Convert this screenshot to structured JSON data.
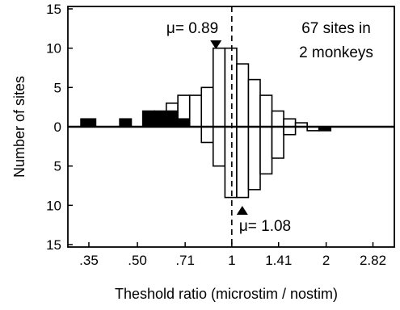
{
  "chart_data": {
    "type": "bar",
    "title": "",
    "xlabel": "Theshold ratio (microstim / nostim)",
    "ylabel": "Number of sites",
    "xscale": "log2",
    "xlim": [
      0.3,
      3.3
    ],
    "ylim_upper": [
      0,
      15
    ],
    "ylim_lower": [
      0,
      15
    ],
    "x_ticks": [
      {
        "value": 0.35,
        "label": ".35"
      },
      {
        "value": 0.5,
        "label": ".50"
      },
      {
        "value": 0.71,
        "label": ".71"
      },
      {
        "value": 1,
        "label": "1"
      },
      {
        "value": 1.41,
        "label": "1.41"
      },
      {
        "value": 2,
        "label": "2"
      },
      {
        "value": 2.82,
        "label": "2.82"
      }
    ],
    "y_ticks_upper": [
      {
        "value": 0,
        "label": "0"
      },
      {
        "value": 5,
        "label": "5"
      },
      {
        "value": 10,
        "label": "10"
      },
      {
        "value": 15,
        "label": "15"
      }
    ],
    "y_ticks_lower": [
      {
        "value": 5,
        "label": "5"
      },
      {
        "value": 10,
        "label": "10"
      },
      {
        "value": 15,
        "label": "15"
      }
    ],
    "upper_distribution": {
      "mean": 0.89,
      "mean_label": "μ= 0.89",
      "bins": [
        {
          "lo": 0.33,
          "hi": 0.368,
          "open": 0,
          "filled": 1
        },
        {
          "lo": 0.439,
          "hi": 0.478,
          "open": 0,
          "filled": 1
        },
        {
          "lo": 0.52,
          "hi": 0.567,
          "open": 0,
          "filled": 2
        },
        {
          "lo": 0.567,
          "hi": 0.618,
          "open": 0,
          "filled": 2
        },
        {
          "lo": 0.618,
          "hi": 0.673,
          "open": 1,
          "filled": 2
        },
        {
          "lo": 0.673,
          "hi": 0.734,
          "open": 3,
          "filled": 1
        },
        {
          "lo": 0.734,
          "hi": 0.8,
          "open": 4,
          "filled": 0
        },
        {
          "lo": 0.8,
          "hi": 0.872,
          "open": 5,
          "filled": 0
        },
        {
          "lo": 0.872,
          "hi": 0.951,
          "open": 10,
          "filled": 0
        },
        {
          "lo": 0.951,
          "hi": 1.037,
          "open": 10,
          "filled": 0
        },
        {
          "lo": 1.037,
          "hi": 1.13,
          "open": 8,
          "filled": 0
        },
        {
          "lo": 1.13,
          "hi": 1.232,
          "open": 6,
          "filled": 0
        },
        {
          "lo": 1.232,
          "hi": 1.343,
          "open": 4,
          "filled": 0
        },
        {
          "lo": 1.343,
          "hi": 1.464,
          "open": 2,
          "filled": 0
        },
        {
          "lo": 1.464,
          "hi": 1.596,
          "open": 1,
          "filled": 0
        },
        {
          "lo": 1.596,
          "hi": 1.74,
          "open": 0.5,
          "filled": 0
        },
        {
          "lo": 1.74,
          "hi": 1.897,
          "open": 0,
          "filled": 0
        },
        {
          "lo": 1.897,
          "hi": 2.068,
          "open": 0,
          "filled": 0
        }
      ]
    },
    "lower_distribution": {
      "mean": 1.08,
      "mean_label": "μ= 1.08",
      "bins": [
        {
          "lo": 0.33,
          "hi": 0.368,
          "open": 0,
          "filled": 0
        },
        {
          "lo": 0.673,
          "hi": 0.734,
          "open": 0,
          "filled": 0
        },
        {
          "lo": 0.734,
          "hi": 0.8,
          "open": 0,
          "filled": 0
        },
        {
          "lo": 0.8,
          "hi": 0.872,
          "open": 2,
          "filled": 0
        },
        {
          "lo": 0.872,
          "hi": 0.951,
          "open": 5,
          "filled": 0
        },
        {
          "lo": 0.951,
          "hi": 1.037,
          "open": 9,
          "filled": 0
        },
        {
          "lo": 1.037,
          "hi": 1.13,
          "open": 9,
          "filled": 0
        },
        {
          "lo": 1.13,
          "hi": 1.232,
          "open": 8,
          "filled": 0
        },
        {
          "lo": 1.232,
          "hi": 1.343,
          "open": 6,
          "filled": 0
        },
        {
          "lo": 1.343,
          "hi": 1.464,
          "open": 4,
          "filled": 0
        },
        {
          "lo": 1.464,
          "hi": 1.596,
          "open": 1,
          "filled": 0
        },
        {
          "lo": 1.74,
          "hi": 1.897,
          "open": 0.5,
          "filled": 0
        },
        {
          "lo": 1.897,
          "hi": 2.068,
          "open": 0,
          "filled": 0.5
        }
      ]
    },
    "reference_line": {
      "value": 1,
      "style": "dashed"
    },
    "annotation": {
      "line1": "67 sites in",
      "line2": "2 monkeys"
    },
    "colors": {
      "open": "#ffffff",
      "filled": "#000000",
      "axis": "#000000"
    }
  }
}
